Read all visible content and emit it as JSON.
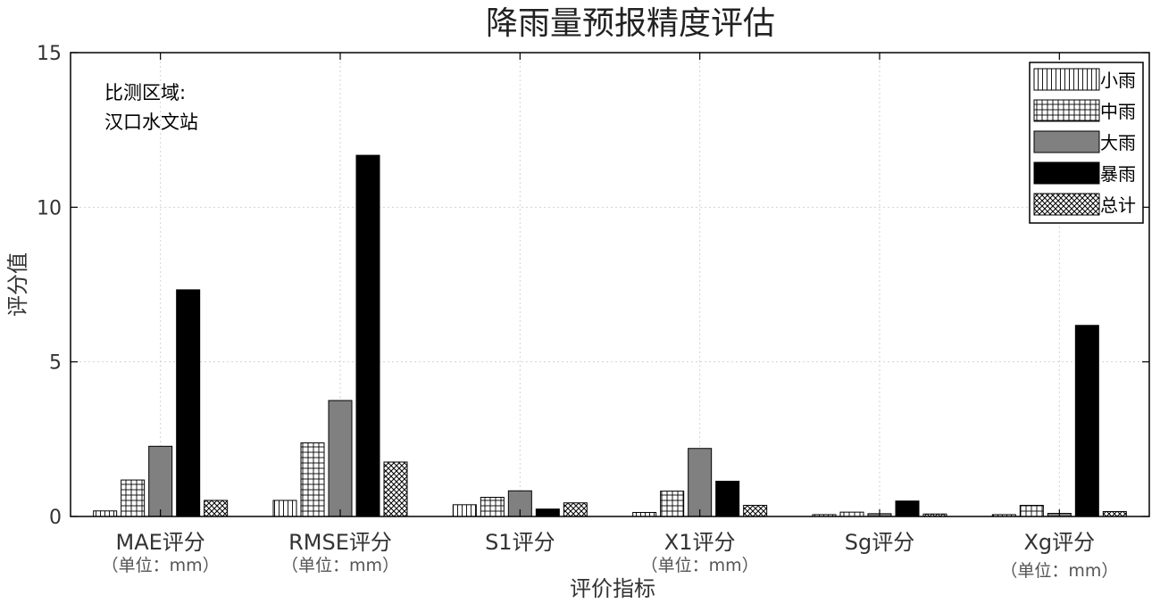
{
  "chart_data": {
    "type": "bar",
    "title": "降雨量预报精度评估",
    "xlabel": "评价指标",
    "ylabel": "评分值",
    "ylim": [
      0,
      15
    ],
    "yticks": [
      0,
      5,
      10,
      15
    ],
    "grid": true,
    "legend_position": "top-right",
    "annotation": [
      "比测区域:",
      "汉口水文站"
    ],
    "categories": [
      "MAE评分",
      "RMSE评分",
      "S1评分",
      "X1评分",
      "Sg评分",
      "Xg评分"
    ],
    "category_units": [
      "（单位：mm）",
      "（单位：mm）",
      "",
      "（单位：mm）",
      "",
      "（单位：mm）"
    ],
    "series": [
      {
        "name": "小雨",
        "pattern": "vertical-lines",
        "color": "#ffffff",
        "values": [
          0.18,
          0.52,
          0.38,
          0.13,
          0.06,
          0.06
        ]
      },
      {
        "name": "中雨",
        "pattern": "grid",
        "color": "#ffffff",
        "values": [
          1.18,
          2.38,
          0.62,
          0.82,
          0.14,
          0.36
        ]
      },
      {
        "name": "大雨",
        "pattern": "solid",
        "color": "#808080",
        "values": [
          2.27,
          3.75,
          0.83,
          2.2,
          0.09,
          0.1
        ]
      },
      {
        "name": "暴雨",
        "pattern": "solid",
        "color": "#000000",
        "values": [
          7.33,
          11.68,
          0.24,
          1.14,
          0.5,
          6.18
        ]
      },
      {
        "name": "总计",
        "pattern": "crosshatch",
        "color": "#ffffff",
        "values": [
          0.52,
          1.76,
          0.44,
          0.36,
          0.08,
          0.16
        ]
      }
    ]
  }
}
